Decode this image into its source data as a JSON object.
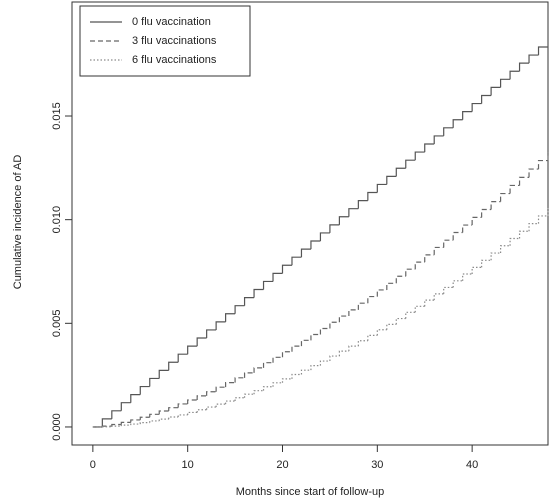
{
  "chart_data": {
    "type": "step",
    "xlabel": "Months since start of follow-up",
    "ylabel": "Cumulative incidence of AD",
    "x": [
      0,
      1,
      2,
      3,
      4,
      5,
      6,
      7,
      8,
      9,
      10,
      11,
      12,
      13,
      14,
      15,
      16,
      17,
      18,
      19,
      20,
      21,
      22,
      23,
      24,
      25,
      26,
      27,
      28,
      29,
      30,
      31,
      32,
      33,
      34,
      35,
      36,
      37,
      38,
      39,
      40,
      41,
      42,
      43,
      44,
      45,
      46,
      47,
      48
    ],
    "series": [
      {
        "name": "0 flu vaccination",
        "color": "#555555",
        "dash": "solid",
        "values": [
          0,
          0.00039,
          0.00078,
          0.00117,
          0.00156,
          0.00195,
          0.00234,
          0.00273,
          0.00312,
          0.00351,
          0.0039,
          0.00429,
          0.00468,
          0.00507,
          0.00546,
          0.00585,
          0.00624,
          0.00663,
          0.00702,
          0.00741,
          0.0078,
          0.00819,
          0.00858,
          0.00897,
          0.00936,
          0.00975,
          0.01014,
          0.01053,
          0.01092,
          0.01131,
          0.0117,
          0.01209,
          0.01248,
          0.01287,
          0.01326,
          0.01365,
          0.01404,
          0.01443,
          0.01482,
          0.01521,
          0.0156,
          0.01599,
          0.01638,
          0.01677,
          0.01716,
          0.01755,
          0.01794,
          0.01833,
          0.01872
        ]
      },
      {
        "name": "3 flu vaccinations",
        "color": "#666666",
        "dash": "dashed",
        "values": [
          0,
          4e-05,
          0.00012,
          0.00022,
          0.00034,
          0.00047,
          0.00061,
          0.00077,
          0.00093,
          0.00111,
          0.0013,
          0.0015,
          0.0017,
          0.00192,
          0.00214,
          0.00237,
          0.00261,
          0.00285,
          0.0031,
          0.00336,
          0.00363,
          0.0039,
          0.00418,
          0.00446,
          0.00475,
          0.00505,
          0.00535,
          0.00565,
          0.00597,
          0.00629,
          0.00661,
          0.00693,
          0.00727,
          0.00761,
          0.00795,
          0.0083,
          0.00866,
          0.00901,
          0.00938,
          0.00974,
          0.01011,
          0.01049,
          0.01087,
          0.01126,
          0.01165,
          0.01204,
          0.01244,
          0.01285,
          0.01326
        ]
      },
      {
        "name": "6 flu vaccinations",
        "color": "#8a8a8a",
        "dash": "dotted",
        "values": [
          0,
          1e-05,
          4e-05,
          9e-05,
          0.00014,
          0.00021,
          0.00029,
          0.00038,
          0.00048,
          0.00058,
          0.0007,
          0.00083,
          0.00096,
          0.0011,
          0.00125,
          0.00141,
          0.00158,
          0.00175,
          0.00194,
          0.00213,
          0.00232,
          0.00253,
          0.00274,
          0.00296,
          0.00318,
          0.00342,
          0.00366,
          0.0039,
          0.00416,
          0.00442,
          0.00469,
          0.00495,
          0.00523,
          0.00553,
          0.00582,
          0.00612,
          0.00642,
          0.00673,
          0.00705,
          0.00738,
          0.0077,
          0.00804,
          0.00839,
          0.00874,
          0.00909,
          0.00944,
          0.00981,
          0.01018,
          0.01056
        ]
      }
    ],
    "xlim": [
      -2.2,
      48.0
    ],
    "xticks": [
      0,
      10,
      20,
      30,
      40
    ],
    "ylim": [
      -0.00087,
      0.0205
    ],
    "yticks": [
      {
        "value": 0,
        "label": "0.000"
      },
      {
        "value": 0.005,
        "label": "0.005"
      },
      {
        "value": 0.01,
        "label": "0.010"
      },
      {
        "value": 0.015,
        "label": "0.015"
      }
    ],
    "legend": "top-left"
  }
}
